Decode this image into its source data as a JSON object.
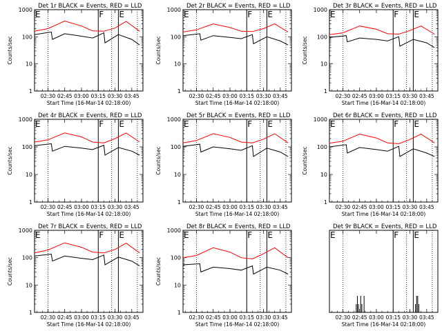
{
  "chart_data": [
    {
      "type": "line",
      "title": "Det 1r BLACK = Events, RED = LLD",
      "xlabel": "Start Time (16-Mar-14 02:18:00)",
      "ylabel": "Counts/sec",
      "yscale": "log",
      "ylim": [
        1,
        1000
      ],
      "yticks": [
        "1",
        "10",
        "100",
        "1000"
      ],
      "xticks": [
        "02:30",
        "02:45",
        "03:00",
        "03:15",
        "03:30",
        "03:45"
      ],
      "markers": [
        {
          "label": "E",
          "time": "02:18"
        },
        {
          "label": "F",
          "time": "03:15"
        },
        {
          "label": "E",
          "time": "03:33"
        }
      ],
      "series": [
        {
          "color": "#ff0000",
          "x": [
            "02:18",
            "02:30",
            "02:45",
            "03:00",
            "03:10",
            "03:20",
            "03:30",
            "03:40",
            "03:52"
          ],
          "values": [
            160,
            200,
            380,
            250,
            165,
            160,
            210,
            370,
            160
          ]
        },
        {
          "color": "#000000",
          "x": [
            "02:18",
            "02:33",
            "02:34",
            "02:45",
            "03:00",
            "03:10",
            "03:20",
            "03:21",
            "03:33",
            "03:45",
            "03:52"
          ],
          "values": [
            120,
            150,
            80,
            130,
            105,
            90,
            140,
            60,
            120,
            80,
            50
          ]
        }
      ]
    },
    {
      "type": "line",
      "title": "Det 2r BLACK = Events, RED = LLD",
      "xlabel": "Start Time (16-Mar-14 02:18:00)",
      "ylabel": "Counts/sec",
      "yscale": "log",
      "ylim": [
        1,
        1000
      ],
      "yticks": [
        "1",
        "10",
        "100",
        "1000"
      ],
      "xticks": [
        "02:30",
        "02:45",
        "03:00",
        "03:15",
        "03:30",
        "03:45"
      ],
      "markers": [
        {
          "label": "E",
          "time": "02:18"
        },
        {
          "label": "F",
          "time": "03:15"
        },
        {
          "label": "E",
          "time": "03:33"
        }
      ],
      "series": [
        {
          "color": "#ff0000",
          "x": [
            "02:18",
            "02:30",
            "02:45",
            "03:00",
            "03:10",
            "03:20",
            "03:30",
            "03:40",
            "03:52"
          ],
          "values": [
            150,
            180,
            300,
            220,
            160,
            155,
            200,
            300,
            150
          ]
        },
        {
          "color": "#000000",
          "x": [
            "02:18",
            "02:33",
            "02:34",
            "02:45",
            "03:00",
            "03:10",
            "03:20",
            "03:21",
            "03:33",
            "03:45",
            "03:52"
          ],
          "values": [
            110,
            130,
            75,
            110,
            95,
            85,
            120,
            55,
            100,
            70,
            50
          ]
        }
      ]
    },
    {
      "type": "line",
      "title": "Det 3r BLACK = Events, RED = LLD",
      "xlabel": "Start Time (16-Mar-14 02:18:00)",
      "ylabel": "Counts/sec",
      "yscale": "log",
      "ylim": [
        1,
        1000
      ],
      "yticks": [
        "1",
        "10",
        "100",
        "1000"
      ],
      "xticks": [
        "02:30",
        "02:45",
        "03:00",
        "03:15",
        "03:30",
        "03:45"
      ],
      "markers": [
        {
          "label": "E",
          "time": "02:18"
        },
        {
          "label": "F",
          "time": "03:15"
        },
        {
          "label": "E",
          "time": "03:33"
        }
      ],
      "series": [
        {
          "color": "#ff0000",
          "x": [
            "02:18",
            "02:30",
            "02:45",
            "03:00",
            "03:10",
            "03:20",
            "03:30",
            "03:40",
            "03:52"
          ],
          "values": [
            120,
            140,
            250,
            190,
            130,
            125,
            170,
            250,
            125
          ]
        },
        {
          "color": "#000000",
          "x": [
            "02:18",
            "02:33",
            "02:34",
            "02:45",
            "03:00",
            "03:10",
            "03:20",
            "03:21",
            "03:33",
            "03:45",
            "03:52"
          ],
          "values": [
            95,
            110,
            65,
            90,
            80,
            70,
            100,
            45,
            80,
            60,
            40
          ]
        }
      ]
    },
    {
      "type": "line",
      "title": "Det 4r BLACK = Events, RED = LLD",
      "xlabel": "Start Time (16-Mar-14 02:18:00)",
      "ylabel": "Counts/sec",
      "yscale": "log",
      "ylim": [
        1,
        1000
      ],
      "yticks": [
        "1",
        "10",
        "100",
        "1000"
      ],
      "xticks": [
        "02:30",
        "02:45",
        "03:00",
        "03:15",
        "03:30",
        "03:45"
      ],
      "markers": [
        {
          "label": "E",
          "time": "02:18"
        },
        {
          "label": "F",
          "time": "03:15"
        },
        {
          "label": "E",
          "time": "03:33"
        }
      ],
      "series": [
        {
          "color": "#ff0000",
          "x": [
            "02:18",
            "02:30",
            "02:45",
            "03:00",
            "03:10",
            "03:20",
            "03:30",
            "03:40",
            "03:52"
          ],
          "values": [
            150,
            180,
            320,
            230,
            150,
            140,
            200,
            320,
            150
          ]
        },
        {
          "color": "#000000",
          "x": [
            "02:18",
            "02:33",
            "02:34",
            "02:45",
            "03:00",
            "03:10",
            "03:20",
            "03:21",
            "03:33",
            "03:45",
            "03:52"
          ],
          "values": [
            110,
            130,
            70,
            105,
            90,
            80,
            115,
            50,
            95,
            70,
            50
          ]
        }
      ]
    },
    {
      "type": "line",
      "title": "Det 5r BLACK = Events, RED = LLD",
      "xlabel": "Start Time (16-Mar-14 02:18:00)",
      "ylabel": "Counts/sec",
      "yscale": "log",
      "ylim": [
        1,
        1000
      ],
      "yticks": [
        "1",
        "10",
        "100",
        "1000"
      ],
      "xticks": [
        "02:30",
        "02:45",
        "03:00",
        "03:15",
        "03:30",
        "03:45"
      ],
      "markers": [
        {
          "label": "E",
          "time": "02:18"
        },
        {
          "label": "F",
          "time": "03:15"
        },
        {
          "label": "E",
          "time": "03:33"
        }
      ],
      "series": [
        {
          "color": "#ff0000",
          "x": [
            "02:18",
            "02:30",
            "02:45",
            "03:00",
            "03:10",
            "03:20",
            "03:30",
            "03:40",
            "03:52"
          ],
          "values": [
            140,
            170,
            300,
            220,
            150,
            140,
            190,
            300,
            140
          ]
        },
        {
          "color": "#000000",
          "x": [
            "02:18",
            "02:33",
            "02:34",
            "02:45",
            "03:00",
            "03:10",
            "03:20",
            "03:21",
            "03:33",
            "03:45",
            "03:52"
          ],
          "values": [
            105,
            125,
            65,
            100,
            85,
            75,
            110,
            45,
            90,
            65,
            45
          ]
        }
      ]
    },
    {
      "type": "line",
      "title": "Det 6r BLACK = Events, RED = LLD",
      "xlabel": "Start Time (16-Mar-14 02:18:00)",
      "ylabel": "Counts/sec",
      "yscale": "log",
      "ylim": [
        1,
        1000
      ],
      "yticks": [
        "1",
        "10",
        "100",
        "1000"
      ],
      "xticks": [
        "02:30",
        "02:45",
        "03:00",
        "03:15",
        "03:30",
        "03:45"
      ],
      "markers": [
        {
          "label": "E",
          "time": "02:18"
        },
        {
          "label": "F",
          "time": "03:15"
        },
        {
          "label": "E",
          "time": "03:33"
        }
      ],
      "series": [
        {
          "color": "#ff0000",
          "x": [
            "02:18",
            "02:30",
            "02:45",
            "03:00",
            "03:10",
            "03:20",
            "03:30",
            "03:40",
            "03:52"
          ],
          "values": [
            135,
            160,
            290,
            210,
            140,
            130,
            185,
            290,
            140
          ]
        },
        {
          "color": "#000000",
          "x": [
            "02:18",
            "02:33",
            "02:34",
            "02:45",
            "03:00",
            "03:10",
            "03:20",
            "03:21",
            "03:33",
            "03:45",
            "03:52"
          ],
          "values": [
            100,
            120,
            60,
            95,
            80,
            70,
            105,
            45,
            85,
            60,
            45
          ]
        }
      ]
    },
    {
      "type": "line",
      "title": "Det 7r BLACK = Events, RED = LLD",
      "xlabel": "Start Time (16-Mar-14 02:18:00)",
      "ylabel": "Counts/sec",
      "yscale": "log",
      "ylim": [
        1,
        1000
      ],
      "yticks": [
        "1",
        "10",
        "100",
        "1000"
      ],
      "xticks": [
        "02:30",
        "02:45",
        "03:00",
        "03:15",
        "03:30",
        "03:45"
      ],
      "markers": [
        {
          "label": "E",
          "time": "02:18"
        },
        {
          "label": "F",
          "time": "03:15"
        },
        {
          "label": "E",
          "time": "03:33"
        }
      ],
      "series": [
        {
          "color": "#ff0000",
          "x": [
            "02:18",
            "02:30",
            "02:45",
            "03:00",
            "03:10",
            "03:20",
            "03:30",
            "03:40",
            "03:52"
          ],
          "values": [
            150,
            190,
            350,
            240,
            160,
            150,
            200,
            340,
            150
          ]
        },
        {
          "color": "#000000",
          "x": [
            "02:18",
            "02:33",
            "02:34",
            "02:45",
            "03:00",
            "03:10",
            "03:20",
            "03:21",
            "03:33",
            "03:45",
            "03:52"
          ],
          "values": [
            115,
            135,
            75,
            115,
            95,
            85,
            125,
            55,
            105,
            75,
            50
          ]
        }
      ]
    },
    {
      "type": "line",
      "title": "Det 8r BLACK = Events, RED = LLD",
      "xlabel": "Start Time (16-Mar-14 02:18:00)",
      "ylabel": "Counts/sec",
      "yscale": "log",
      "ylim": [
        1,
        1000
      ],
      "yticks": [
        "1",
        "10",
        "100",
        "1000"
      ],
      "xticks": [
        "02:30",
        "02:45",
        "03:00",
        "03:15",
        "03:30",
        "03:45"
      ],
      "markers": [
        {
          "label": "E",
          "time": "02:18"
        },
        {
          "label": "F",
          "time": "03:15"
        },
        {
          "label": "E",
          "time": "03:33"
        }
      ],
      "series": [
        {
          "color": "#ff0000",
          "x": [
            "02:18",
            "02:30",
            "02:45",
            "03:00",
            "03:10",
            "03:20",
            "03:30",
            "03:40",
            "03:52"
          ],
          "values": [
            100,
            120,
            230,
            160,
            100,
            90,
            140,
            230,
            100
          ]
        },
        {
          "color": "#000000",
          "x": [
            "02:18",
            "02:33",
            "02:34",
            "02:45",
            "03:00",
            "03:10",
            "03:20",
            "03:21",
            "03:33",
            "03:45",
            "03:52"
          ],
          "values": [
            55,
            60,
            30,
            45,
            40,
            35,
            50,
            25,
            45,
            35,
            25
          ]
        }
      ]
    },
    {
      "type": "line",
      "title": "Det 9r BLACK = Events, RED = LLD",
      "xlabel": "Start Time (16-Mar-14 02:18:00)",
      "ylabel": "",
      "yscale": "linear",
      "ylim": [
        0,
        8
      ],
      "yticks": [],
      "xticks": [
        "02:30",
        "02:45",
        "03:00",
        "03:15",
        "03:30",
        "03:45"
      ],
      "markers": [
        {
          "label": "E",
          "time": "02:18"
        },
        {
          "label": "F",
          "time": "03:15"
        },
        {
          "label": "E",
          "time": "03:33"
        }
      ],
      "series": [
        {
          "color": "#000000",
          "type": "spikes",
          "x": [
            "02:42",
            "02:43",
            "02:44",
            "02:46",
            "02:47",
            "02:49",
            "03:35",
            "03:36",
            "03:37",
            "03:38"
          ],
          "values": [
            1,
            2,
            1,
            2,
            1,
            2,
            1,
            2,
            2,
            1
          ]
        }
      ]
    }
  ]
}
